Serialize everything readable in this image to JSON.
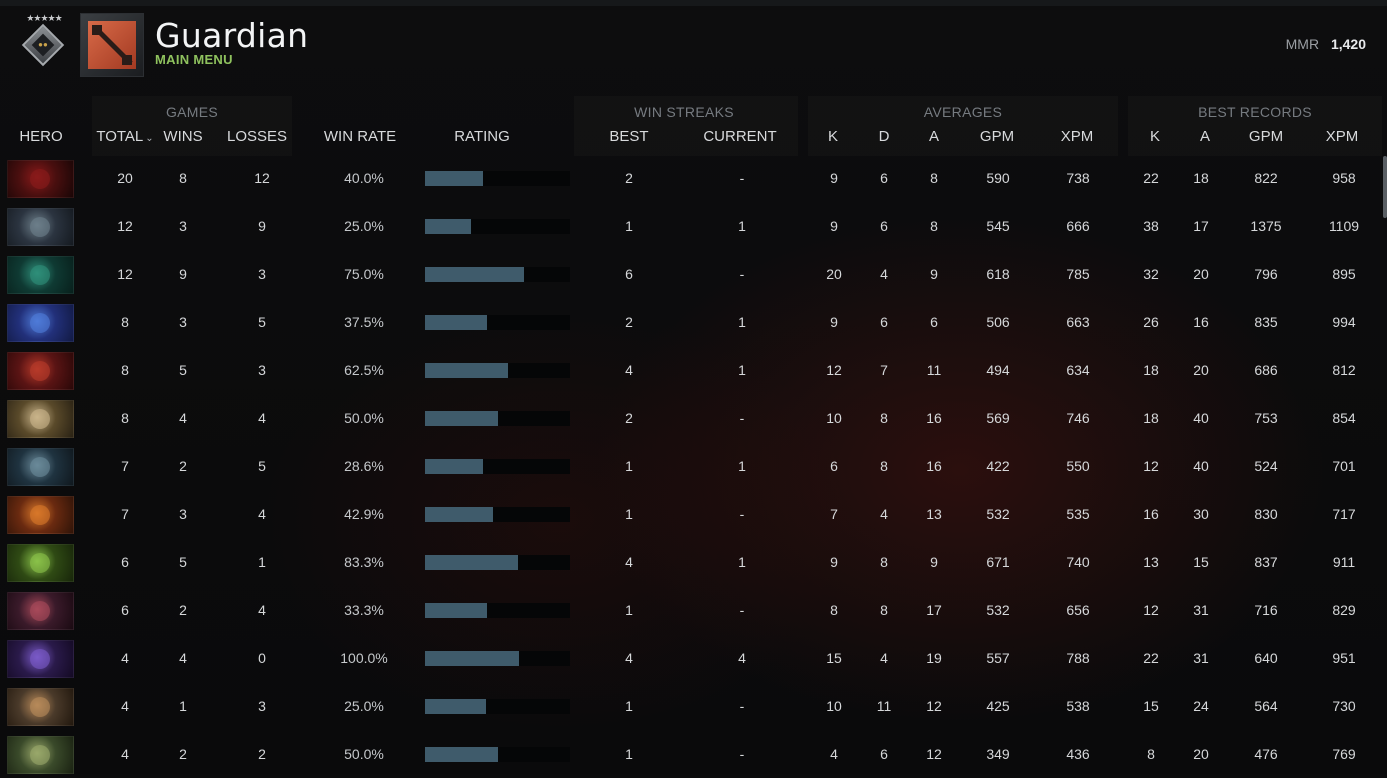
{
  "header": {
    "title": "Guardian",
    "subtitle": "MAIN MENU",
    "rank_stars": "★★★★★",
    "mmr_label": "MMR",
    "mmr_value": "1,420"
  },
  "groups": {
    "games": "GAMES",
    "win_streaks": "WIN STREAKS",
    "averages": "AVERAGES",
    "best_records": "BEST RECORDS"
  },
  "columns": {
    "hero": "HERO",
    "total": "TOTAL",
    "wins": "WINS",
    "losses": "LOSSES",
    "win_rate": "WIN RATE",
    "rating": "RATING",
    "best": "BEST",
    "current": "CURRENT",
    "avg_k": "K",
    "avg_d": "D",
    "avg_a": "A",
    "avg_gpm": "GPM",
    "avg_xpm": "XPM",
    "best_k": "K",
    "best_a": "A",
    "best_gpm": "GPM",
    "best_xpm": "XPM"
  },
  "hero_icons": [
    "hero-portrait-icon-red-demon",
    "hero-portrait-icon-hooded-assassin",
    "hero-portrait-icon-green-spirit",
    "hero-portrait-icon-blue-creature",
    "hero-portrait-icon-red-warrior",
    "hero-portrait-icon-bearded-elder",
    "hero-portrait-icon-armored-knight",
    "hero-portrait-icon-flame-beast",
    "hero-portrait-icon-green-goblin",
    "hero-portrait-icon-crimson-lord",
    "hero-portrait-icon-purple-mage",
    "hero-portrait-icon-dwarf-engineer",
    "hero-portrait-icon-ogre-brute"
  ],
  "hero_colors": [
    [
      "#4a0f0f",
      "#8a1a1a",
      "#1a0606"
    ],
    [
      "#2b3440",
      "#6d7f8a",
      "#151a20"
    ],
    [
      "#0f3a33",
      "#2f8f7a",
      "#08201c"
    ],
    [
      "#22307a",
      "#4f7bd8",
      "#121a44"
    ],
    [
      "#5a1414",
      "#b83a2a",
      "#2a0808"
    ],
    [
      "#5a4a2a",
      "#c9b48a",
      "#2a2214"
    ],
    [
      "#1f3340",
      "#6a8a9a",
      "#10181e"
    ],
    [
      "#6a2a10",
      "#d8782a",
      "#301408"
    ],
    [
      "#2f4a14",
      "#8ac24a",
      "#18260a"
    ],
    [
      "#3a1a2a",
      "#a84a5a",
      "#1a0a12"
    ],
    [
      "#2a1a4a",
      "#7a5ac8",
      "#140a24"
    ],
    [
      "#4a3a2a",
      "#b88a5a",
      "#22180e"
    ],
    [
      "#3a4a2a",
      "#9aa86a",
      "#1a2212"
    ]
  ],
  "rows": [
    {
      "total": "20",
      "wins": "8",
      "losses": "12",
      "win_rate": "40.0%",
      "rating": 0.4,
      "best": "2",
      "current": "-",
      "avg_k": "9",
      "avg_d": "6",
      "avg_a": "8",
      "avg_gpm": "590",
      "avg_xpm": "738",
      "best_k": "22",
      "best_a": "18",
      "best_gpm": "822",
      "best_xpm": "958"
    },
    {
      "total": "12",
      "wins": "3",
      "losses": "9",
      "win_rate": "25.0%",
      "rating": 0.32,
      "best": "1",
      "current": "1",
      "avg_k": "9",
      "avg_d": "6",
      "avg_a": "8",
      "avg_gpm": "545",
      "avg_xpm": "666",
      "best_k": "38",
      "best_a": "17",
      "best_gpm": "1375",
      "best_xpm": "1109"
    },
    {
      "total": "12",
      "wins": "9",
      "losses": "3",
      "win_rate": "75.0%",
      "rating": 0.68,
      "best": "6",
      "current": "-",
      "avg_k": "20",
      "avg_d": "4",
      "avg_a": "9",
      "avg_gpm": "618",
      "avg_xpm": "785",
      "best_k": "32",
      "best_a": "20",
      "best_gpm": "796",
      "best_xpm": "895"
    },
    {
      "total": "8",
      "wins": "3",
      "losses": "5",
      "win_rate": "37.5%",
      "rating": 0.43,
      "best": "2",
      "current": "1",
      "avg_k": "9",
      "avg_d": "6",
      "avg_a": "6",
      "avg_gpm": "506",
      "avg_xpm": "663",
      "best_k": "26",
      "best_a": "16",
      "best_gpm": "835",
      "best_xpm": "994"
    },
    {
      "total": "8",
      "wins": "5",
      "losses": "3",
      "win_rate": "62.5%",
      "rating": 0.57,
      "best": "4",
      "current": "1",
      "avg_k": "12",
      "avg_d": "7",
      "avg_a": "11",
      "avg_gpm": "494",
      "avg_xpm": "634",
      "best_k": "18",
      "best_a": "20",
      "best_gpm": "686",
      "best_xpm": "812"
    },
    {
      "total": "8",
      "wins": "4",
      "losses": "4",
      "win_rate": "50.0%",
      "rating": 0.5,
      "best": "2",
      "current": "-",
      "avg_k": "10",
      "avg_d": "8",
      "avg_a": "16",
      "avg_gpm": "569",
      "avg_xpm": "746",
      "best_k": "18",
      "best_a": "40",
      "best_gpm": "753",
      "best_xpm": "854"
    },
    {
      "total": "7",
      "wins": "2",
      "losses": "5",
      "win_rate": "28.6%",
      "rating": 0.4,
      "best": "1",
      "current": "1",
      "avg_k": "6",
      "avg_d": "8",
      "avg_a": "16",
      "avg_gpm": "422",
      "avg_xpm": "550",
      "best_k": "12",
      "best_a": "40",
      "best_gpm": "524",
      "best_xpm": "701"
    },
    {
      "total": "7",
      "wins": "3",
      "losses": "4",
      "win_rate": "42.9%",
      "rating": 0.47,
      "best": "1",
      "current": "-",
      "avg_k": "7",
      "avg_d": "4",
      "avg_a": "13",
      "avg_gpm": "532",
      "avg_xpm": "535",
      "best_k": "16",
      "best_a": "30",
      "best_gpm": "830",
      "best_xpm": "717"
    },
    {
      "total": "6",
      "wins": "5",
      "losses": "1",
      "win_rate": "83.3%",
      "rating": 0.64,
      "best": "4",
      "current": "1",
      "avg_k": "9",
      "avg_d": "8",
      "avg_a": "9",
      "avg_gpm": "671",
      "avg_xpm": "740",
      "best_k": "13",
      "best_a": "15",
      "best_gpm": "837",
      "best_xpm": "911"
    },
    {
      "total": "6",
      "wins": "2",
      "losses": "4",
      "win_rate": "33.3%",
      "rating": 0.43,
      "best": "1",
      "current": "-",
      "avg_k": "8",
      "avg_d": "8",
      "avg_a": "17",
      "avg_gpm": "532",
      "avg_xpm": "656",
      "best_k": "12",
      "best_a": "31",
      "best_gpm": "716",
      "best_xpm": "829"
    },
    {
      "total": "4",
      "wins": "4",
      "losses": "0",
      "win_rate": "100.0%",
      "rating": 0.65,
      "best": "4",
      "current": "4",
      "avg_k": "15",
      "avg_d": "4",
      "avg_a": "19",
      "avg_gpm": "557",
      "avg_xpm": "788",
      "best_k": "22",
      "best_a": "31",
      "best_gpm": "640",
      "best_xpm": "951"
    },
    {
      "total": "4",
      "wins": "1",
      "losses": "3",
      "win_rate": "25.0%",
      "rating": 0.42,
      "best": "1",
      "current": "-",
      "avg_k": "10",
      "avg_d": "11",
      "avg_a": "12",
      "avg_gpm": "425",
      "avg_xpm": "538",
      "best_k": "15",
      "best_a": "24",
      "best_gpm": "564",
      "best_xpm": "730"
    },
    {
      "total": "4",
      "wins": "2",
      "losses": "2",
      "win_rate": "50.0%",
      "rating": 0.5,
      "best": "1",
      "current": "-",
      "avg_k": "4",
      "avg_d": "6",
      "avg_a": "12",
      "avg_gpm": "349",
      "avg_xpm": "436",
      "best_k": "8",
      "best_a": "20",
      "best_gpm": "476",
      "best_xpm": "769"
    }
  ],
  "colors": {
    "rating_bar": "#3f5b6b",
    "subtitle": "#8fc25e"
  }
}
